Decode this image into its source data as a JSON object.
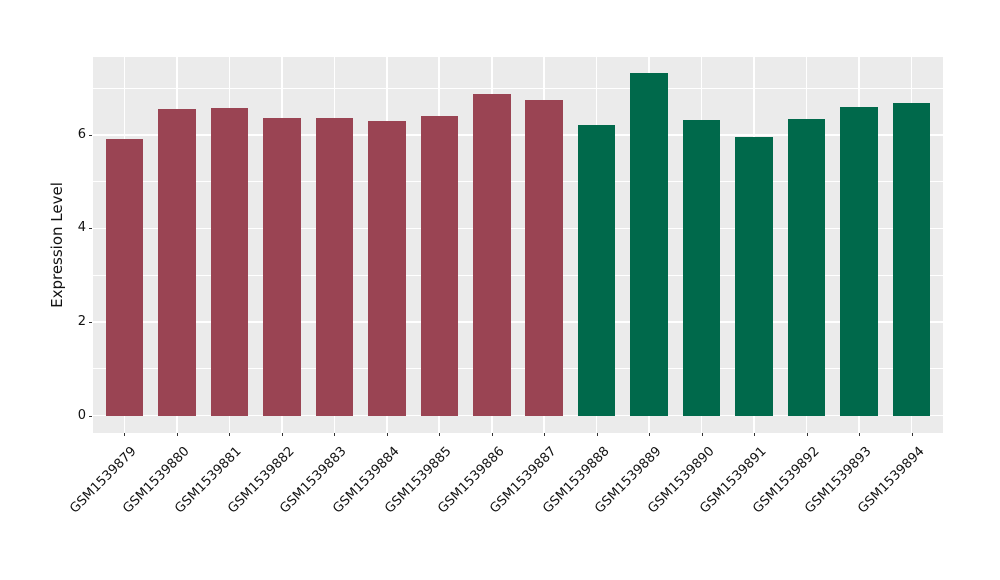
{
  "chart_data": {
    "type": "bar",
    "title": "",
    "xlabel": "",
    "ylabel": "Expression Level",
    "legend": "none",
    "grid": "on",
    "categories": [
      "GSM1539879",
      "GSM1539880",
      "GSM1539881",
      "GSM1539882",
      "GSM1539883",
      "GSM1539884",
      "GSM1539885",
      "GSM1539886",
      "GSM1539887",
      "GSM1539888",
      "GSM1539889",
      "GSM1539890",
      "GSM1539891",
      "GSM1539892",
      "GSM1539893",
      "GSM1539894"
    ],
    "values": [
      5.91,
      6.55,
      6.57,
      6.36,
      6.36,
      6.3,
      6.39,
      6.87,
      6.74,
      6.2,
      7.31,
      6.32,
      5.96,
      6.34,
      6.6,
      6.67
    ],
    "bar_groups": [
      {
        "name": "red-group",
        "color": "#9A4453",
        "from": 0,
        "to": 8
      },
      {
        "name": "green-group",
        "color": "#00694B",
        "from": 9,
        "to": 15
      }
    ],
    "y_axis": {
      "major_ticks": [
        0,
        2,
        4,
        6
      ],
      "minor_gridlines": [
        1,
        3,
        5,
        7
      ],
      "ylim_panel": [
        -0.37,
        7.66
      ]
    },
    "style": {
      "panel_bg": "#EBEBEB",
      "grid_color": "#FFFFFF",
      "tick_color": "#333333",
      "text_color": "#111111"
    }
  }
}
